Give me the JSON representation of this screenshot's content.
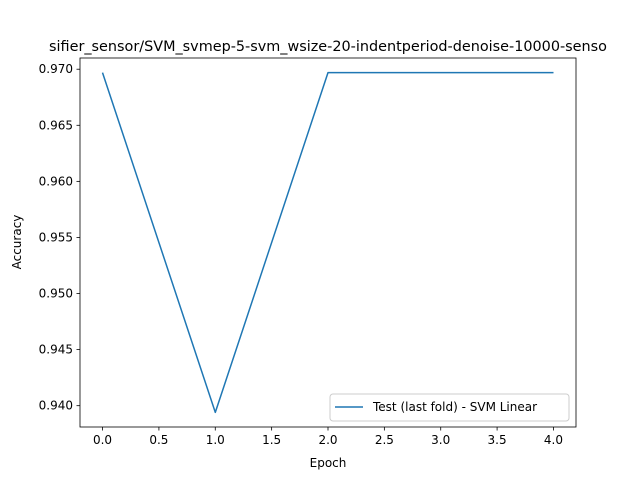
{
  "chart_data": {
    "type": "line",
    "title": "sifier_sensor/SVM_svmep-5-svm_wsize-20-indentperiod-denoise-10000-senso",
    "xlabel": "Epoch",
    "ylabel": "Accuracy",
    "xlim": [
      -0.2,
      4.2
    ],
    "ylim": [
      0.9381,
      0.971
    ],
    "x_ticks": [
      "0.0",
      "0.5",
      "1.0",
      "1.5",
      "2.0",
      "2.5",
      "3.0",
      "3.5",
      "4.0"
    ],
    "y_ticks": [
      "0.940",
      "0.945",
      "0.950",
      "0.955",
      "0.960",
      "0.965",
      "0.970"
    ],
    "grid": false,
    "legend_position": "lower-right",
    "series": [
      {
        "name": "Test (last fold) - SVM Linear",
        "color": "#1f77b4",
        "x": [
          0,
          1,
          2,
          3,
          4
        ],
        "y": [
          0.9697,
          0.9394,
          0.9697,
          0.9697,
          0.9697
        ]
      }
    ]
  }
}
